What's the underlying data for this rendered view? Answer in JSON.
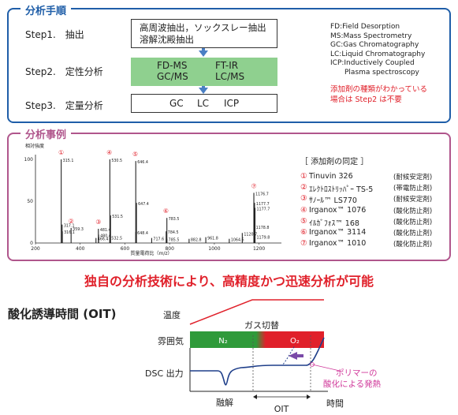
{
  "section1": {
    "title": "分析手順",
    "steps": [
      {
        "label": "Step1.　抽出"
      },
      {
        "label": "Step2.　定性分析"
      },
      {
        "label": "Step3.　定量分析"
      }
    ],
    "extract_line1": "高周波抽出，ソックスレー抽出",
    "extract_line2": "溶解沈殿抽出",
    "qual_left_1": "FD-MS",
    "qual_left_2": "GC/MS",
    "qual_right_1": "FT-IR",
    "qual_right_2": "LC/MS",
    "quant_gc": "GC",
    "quant_lc": "LC",
    "quant_icp": "ICP",
    "abbreviations": [
      "FD:Field Desorption",
      "MS:Mass Spectrometry",
      "GC:Gas Chromatography",
      "LC:Liquid Chromatography",
      "ICP:Inductively Coupled",
      "Plasma spectroscopy"
    ],
    "note_line1": "添加剤の種類がわかっている",
    "note_line2": "場合は Step2 は不要",
    "colors": {
      "border": "#1f5ea8",
      "green": "#8fd08f",
      "arrow": "#4a7fc4",
      "note": "#e0202a"
    }
  },
  "section2": {
    "title": "分析事例",
    "spectrum": {
      "ylabel": "相対強度",
      "y_ticks": [
        "100",
        "50",
        "0"
      ],
      "x_ticks": [
        "200",
        "400",
        "600",
        "800",
        "1000",
        "1200"
      ],
      "xlabel": "質量電荷比（m/z）",
      "peaks": [
        {
          "mz": 315.1,
          "h": 100,
          "label": "315.1"
        },
        {
          "mz": 317.1,
          "h": 22,
          "label": "317.1"
        },
        {
          "mz": 316.1,
          "h": 14,
          "label": "316.1"
        },
        {
          "mz": 359.3,
          "h": 18,
          "label": "359.3"
        },
        {
          "mz": 480.4,
          "h": 10,
          "label": "480.4"
        },
        {
          "mz": 466.4,
          "h": 6,
          "label": "466.4"
        },
        {
          "mz": 481.4,
          "h": 17,
          "label": "481.4"
        },
        {
          "mz": 530.5,
          "h": 100,
          "label": "530.5"
        },
        {
          "mz": 531.5,
          "h": 33,
          "label": "531.5"
        },
        {
          "mz": 532.5,
          "h": 7,
          "label": "532.5"
        },
        {
          "mz": 646.4,
          "h": 98,
          "label": "646.4"
        },
        {
          "mz": 647.4,
          "h": 48,
          "label": "647.4"
        },
        {
          "mz": 648.4,
          "h": 13,
          "label": "648.4"
        },
        {
          "mz": 717.6,
          "h": 6,
          "label": "717.6"
        },
        {
          "mz": 783.5,
          "h": 30,
          "label": "783.5"
        },
        {
          "mz": 784.5,
          "h": 14,
          "label": "784.5"
        },
        {
          "mz": 785.5,
          "h": 5,
          "label": "785.5"
        },
        {
          "mz": 882.8,
          "h": 5,
          "label": "882.8"
        },
        {
          "mz": 961.8,
          "h": 7,
          "label": "961.8"
        },
        {
          "mz": 1064.6,
          "h": 5,
          "label": "1064.6"
        },
        {
          "mz": 1120.7,
          "h": 12,
          "label": "1120.7"
        },
        {
          "mz": 1176.7,
          "h": 60,
          "label": "1176.7"
        },
        {
          "mz": 1177.7,
          "h": 48,
          "label": "1177.7"
        },
        {
          "mz": 1177.7,
          "h": 42,
          "label": "1177.7"
        },
        {
          "mz": 1178.8,
          "h": 20,
          "label": "1178.8"
        },
        {
          "mz": 1179.8,
          "h": 8,
          "label": "1179.8"
        }
      ],
      "markers": [
        {
          "mz": 315.1,
          "text": "①"
        },
        {
          "mz": 359.3,
          "text": "②"
        },
        {
          "mz": 481.4,
          "text": "③"
        },
        {
          "mz": 530.5,
          "text": "④"
        },
        {
          "mz": 646.4,
          "text": "⑤"
        },
        {
          "mz": 783.5,
          "text": "⑥"
        },
        {
          "mz": 1176.7,
          "text": "⑦"
        }
      ]
    },
    "additives_title": "［ 添加剤の同定 ］",
    "additives": [
      {
        "num": "①",
        "name": "Tinuvin 326",
        "role": "(耐候安定剤)"
      },
      {
        "num": "②",
        "name": "ｴﾚｸﾄﾛｽﾄﾘｯﾊﾟｰ TS-5",
        "role": "(帯電防止剤)"
      },
      {
        "num": "③",
        "name": "ｻﾉｰﾙ™ LS770",
        "role": "(耐候安定剤)"
      },
      {
        "num": "④",
        "name": "Irganox™ 1076",
        "role": "(酸化防止剤)"
      },
      {
        "num": "⑤",
        "name": "ｲﾙｶﾞﾌｫｽ™ 168",
        "role": "(酸化防止剤)"
      },
      {
        "num": "⑥",
        "name": "Irganox™ 3114",
        "role": "(酸化防止剤)"
      },
      {
        "num": "⑦",
        "name": "Irganox™ 1010",
        "role": "(酸化防止剤)"
      }
    ],
    "colors": {
      "border": "#b0568c",
      "marker": "#e0202a",
      "peak": "#222222"
    }
  },
  "headline": "独自の分析技術により、高精度かつ迅速分析が可能",
  "oit": {
    "title": "酸化誘導時間 (OIT)",
    "temp_label": "温度",
    "gas_switch": "ガス切替",
    "atmosphere_label": "雰囲気",
    "n2": "N₂",
    "o2": "O₂",
    "dsc_label": "DSC 出力",
    "melt": "融解",
    "oit": "OIT",
    "time": "時間",
    "callout_line1": "ポリマーの",
    "callout_line2": "酸化による発熱",
    "colors": {
      "temp": "#e0202a",
      "n2": "#2f9a3a",
      "o2": "#e0202a",
      "dsc": "#1f3f8a",
      "callout": "#d0389a",
      "arrow": "#7a4aa8"
    }
  }
}
